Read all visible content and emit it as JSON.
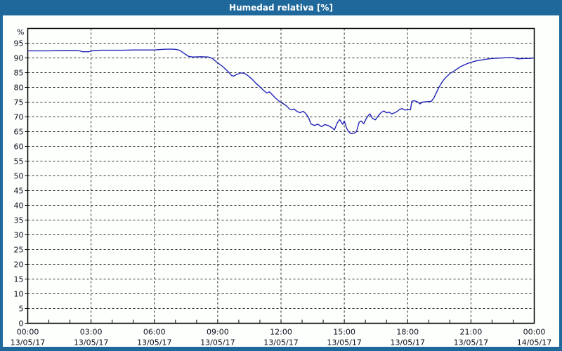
{
  "window": {
    "title": "Humedad relativa [%]"
  },
  "colors": {
    "titlebar": "#1E689B",
    "frame": "#1E689B",
    "panel_background": "#FCFFFC",
    "plot_border": "#000000",
    "grid": "#2A2A2A",
    "tick_text": "#0E0E1E",
    "line": "#2424B8"
  },
  "chart_data": {
    "type": "line",
    "title": "Humedad relativa [%]",
    "y_unit": "%",
    "ylabel": "%",
    "xlabel": "",
    "ylim": [
      0,
      100
    ],
    "xlim_hours": [
      0,
      24
    ],
    "grid": "dashed; horizontal every 5%, vertical every 3h, minor x ticks hourly",
    "legend": "none",
    "y_ticks": [
      0,
      5,
      10,
      15,
      20,
      25,
      30,
      35,
      40,
      45,
      50,
      55,
      60,
      65,
      70,
      75,
      80,
      85,
      90,
      95
    ],
    "x_ticks": [
      {
        "hour": 0,
        "time": "00:00",
        "date": "13/05/17"
      },
      {
        "hour": 3,
        "time": "03:00",
        "date": "13/05/17"
      },
      {
        "hour": 6,
        "time": "06:00",
        "date": "13/05/17"
      },
      {
        "hour": 9,
        "time": "09:00",
        "date": "13/05/17"
      },
      {
        "hour": 12,
        "time": "12:00",
        "date": "13/05/17"
      },
      {
        "hour": 15,
        "time": "15:00",
        "date": "13/05/17"
      },
      {
        "hour": 18,
        "time": "18:00",
        "date": "13/05/17"
      },
      {
        "hour": 21,
        "time": "21:00",
        "date": "13/05/17"
      },
      {
        "hour": 24,
        "time": "00:00",
        "date": "14/05/17"
      }
    ],
    "series": [
      {
        "name": "Humedad relativa",
        "color": "#2424B8",
        "points": [
          [
            0,
            92.4
          ],
          [
            0.5,
            92.4
          ],
          [
            1,
            92.4
          ],
          [
            1.5,
            92.5
          ],
          [
            2,
            92.5
          ],
          [
            2.4,
            92.5
          ],
          [
            2.6,
            92.1
          ],
          [
            2.9,
            92.1
          ],
          [
            3.1,
            92.5
          ],
          [
            3.5,
            92.6
          ],
          [
            4,
            92.6
          ],
          [
            4.5,
            92.6
          ],
          [
            5,
            92.7
          ],
          [
            5.5,
            92.7
          ],
          [
            6,
            92.7
          ],
          [
            6.4,
            92.9
          ],
          [
            6.75,
            93.0
          ],
          [
            7,
            92.9
          ],
          [
            7.2,
            92.6
          ],
          [
            7.4,
            91.6
          ],
          [
            7.6,
            90.6
          ],
          [
            7.8,
            90.3
          ],
          [
            8.2,
            90.4
          ],
          [
            8.55,
            90.3
          ],
          [
            8.75,
            89.8
          ],
          [
            9,
            88.3
          ],
          [
            9.25,
            87.0
          ],
          [
            9.5,
            85.3
          ],
          [
            9.65,
            84.1
          ],
          [
            9.75,
            83.8
          ],
          [
            9.9,
            84.4
          ],
          [
            10.1,
            84.9
          ],
          [
            10.25,
            84.8
          ],
          [
            10.4,
            84.2
          ],
          [
            10.6,
            83.0
          ],
          [
            10.8,
            81.5
          ],
          [
            11,
            80.2
          ],
          [
            11.2,
            78.8
          ],
          [
            11.33,
            78.1
          ],
          [
            11.45,
            78.5
          ],
          [
            11.6,
            77.4
          ],
          [
            11.75,
            76.3
          ],
          [
            11.95,
            75.1
          ],
          [
            12.1,
            74.5
          ],
          [
            12.25,
            73.8
          ],
          [
            12.4,
            72.7
          ],
          [
            12.5,
            72.4
          ],
          [
            12.62,
            72.7
          ],
          [
            12.75,
            71.9
          ],
          [
            12.9,
            71.4
          ],
          [
            13.05,
            71.9
          ],
          [
            13.17,
            71.2
          ],
          [
            13.3,
            69.8
          ],
          [
            13.42,
            67.6
          ],
          [
            13.58,
            67.1
          ],
          [
            13.75,
            67.5
          ],
          [
            13.92,
            66.7
          ],
          [
            14.08,
            67.4
          ],
          [
            14.25,
            67.0
          ],
          [
            14.42,
            66.3
          ],
          [
            14.53,
            65.6
          ],
          [
            14.67,
            68.0
          ],
          [
            14.78,
            69.1
          ],
          [
            14.92,
            67.5
          ],
          [
            15,
            68.6
          ],
          [
            15.12,
            66.0
          ],
          [
            15.22,
            64.8
          ],
          [
            15.33,
            64.3
          ],
          [
            15.47,
            64.5
          ],
          [
            15.58,
            65.0
          ],
          [
            15.7,
            68.2
          ],
          [
            15.8,
            68.6
          ],
          [
            15.92,
            67.7
          ],
          [
            16.03,
            69.3
          ],
          [
            16.13,
            70.4
          ],
          [
            16.22,
            71.0
          ],
          [
            16.33,
            69.5
          ],
          [
            16.47,
            69.0
          ],
          [
            16.62,
            70.5
          ],
          [
            16.75,
            71.5
          ],
          [
            16.87,
            72.0
          ],
          [
            17,
            71.4
          ],
          [
            17.13,
            71.6
          ],
          [
            17.25,
            71.0
          ],
          [
            17.38,
            71.4
          ],
          [
            17.5,
            71.8
          ],
          [
            17.63,
            72.6
          ],
          [
            17.75,
            72.8
          ],
          [
            17.87,
            72.3
          ],
          [
            18,
            72.5
          ],
          [
            18.13,
            72.4
          ],
          [
            18.2,
            75.3
          ],
          [
            18.33,
            75.5
          ],
          [
            18.47,
            75.1
          ],
          [
            18.58,
            74.4
          ],
          [
            18.7,
            75.0
          ],
          [
            18.83,
            75.1
          ],
          [
            19,
            75.2
          ],
          [
            19.13,
            75.3
          ],
          [
            19.25,
            76.5
          ],
          [
            19.37,
            78.3
          ],
          [
            19.47,
            79.8
          ],
          [
            19.58,
            81.2
          ],
          [
            19.67,
            82.2
          ],
          [
            19.8,
            83.3
          ],
          [
            19.92,
            84.1
          ],
          [
            20,
            84.7
          ],
          [
            20.17,
            85.4
          ],
          [
            20.33,
            86.2
          ],
          [
            20.5,
            87.0
          ],
          [
            20.67,
            87.6
          ],
          [
            20.83,
            88.1
          ],
          [
            21,
            88.5
          ],
          [
            21.25,
            89.0
          ],
          [
            21.5,
            89.3
          ],
          [
            21.75,
            89.6
          ],
          [
            22,
            89.8
          ],
          [
            22.25,
            89.9
          ],
          [
            22.5,
            90.0
          ],
          [
            22.75,
            90.1
          ],
          [
            23,
            90.1
          ],
          [
            23.25,
            89.7
          ],
          [
            23.5,
            89.8
          ],
          [
            23.75,
            89.8
          ],
          [
            24,
            90.0
          ]
        ]
      }
    ]
  }
}
